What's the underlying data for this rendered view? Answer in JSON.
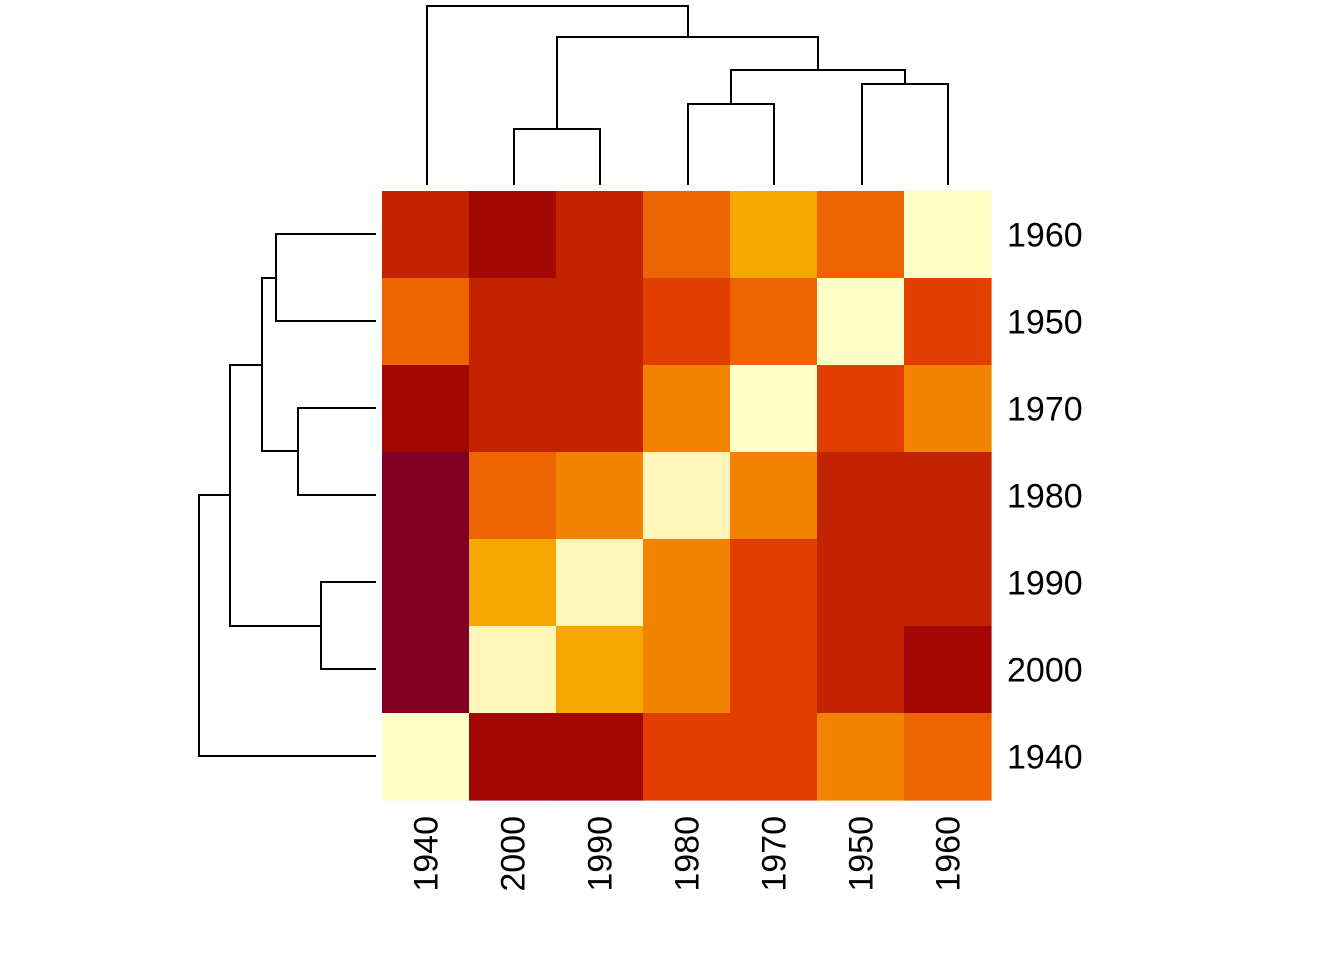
{
  "chart_data": {
    "type": "heatmap",
    "title": "",
    "xlabel": "",
    "ylabel": "",
    "column_labels": [
      "1940",
      "2000",
      "1990",
      "1980",
      "1970",
      "1950",
      "1960"
    ],
    "row_labels": [
      "1960",
      "1950",
      "1970",
      "1980",
      "1990",
      "2000",
      "1940"
    ],
    "values": [
      [
        3,
        1,
        3,
        7,
        10,
        7,
        13
      ],
      [
        7,
        3,
        3,
        5,
        7,
        13,
        5
      ],
      [
        1,
        3,
        3,
        8,
        13,
        5,
        8
      ],
      [
        0,
        7,
        8,
        12,
        8,
        3,
        3
      ],
      [
        0,
        10,
        12,
        8,
        5,
        3,
        3
      ],
      [
        0,
        12,
        10,
        8,
        5,
        3,
        1
      ],
      [
        13,
        1,
        1,
        5,
        5,
        8,
        7
      ]
    ],
    "color_scale": [
      "#800026",
      "#A30704",
      "#C32400",
      "#E13E00",
      "#EC6500",
      "#F28300",
      "#F5A700",
      "#FFF5B8",
      "#FFFFC8"
    ],
    "column_dendrogram": true,
    "row_dendrogram": true
  }
}
